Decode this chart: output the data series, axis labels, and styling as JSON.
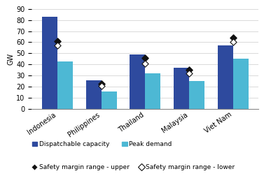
{
  "categories": [
    "Indonesia",
    "Philippines",
    "Thailand",
    "Malaysia",
    "Viet Nam"
  ],
  "dispatchable_capacity": [
    83,
    26,
    49,
    37,
    57
  ],
  "peak_demand": [
    43,
    16,
    32,
    25,
    45
  ],
  "safety_upper": [
    61,
    23,
    46,
    35,
    64
  ],
  "safety_lower": [
    57,
    21,
    41,
    32,
    60
  ],
  "bar_color_dispatch": "#2e4a9e",
  "bar_color_peak": "#4db8d4",
  "marker_upper_color": "#111111",
  "marker_lower_facecolor": "#ffffff",
  "marker_lower_edgecolor": "#111111",
  "ylabel": "GW",
  "ylim": [
    0,
    90
  ],
  "yticks": [
    0,
    10,
    20,
    30,
    40,
    50,
    60,
    70,
    80,
    90
  ],
  "legend_dispatch": "Dispatchable capacity",
  "legend_peak": "Peak demand",
  "legend_upper": "Safety margin range - upper",
  "legend_lower": "Safety margin range - lower",
  "bar_width": 0.35,
  "figsize": [
    3.77,
    2.52
  ],
  "dpi": 100
}
